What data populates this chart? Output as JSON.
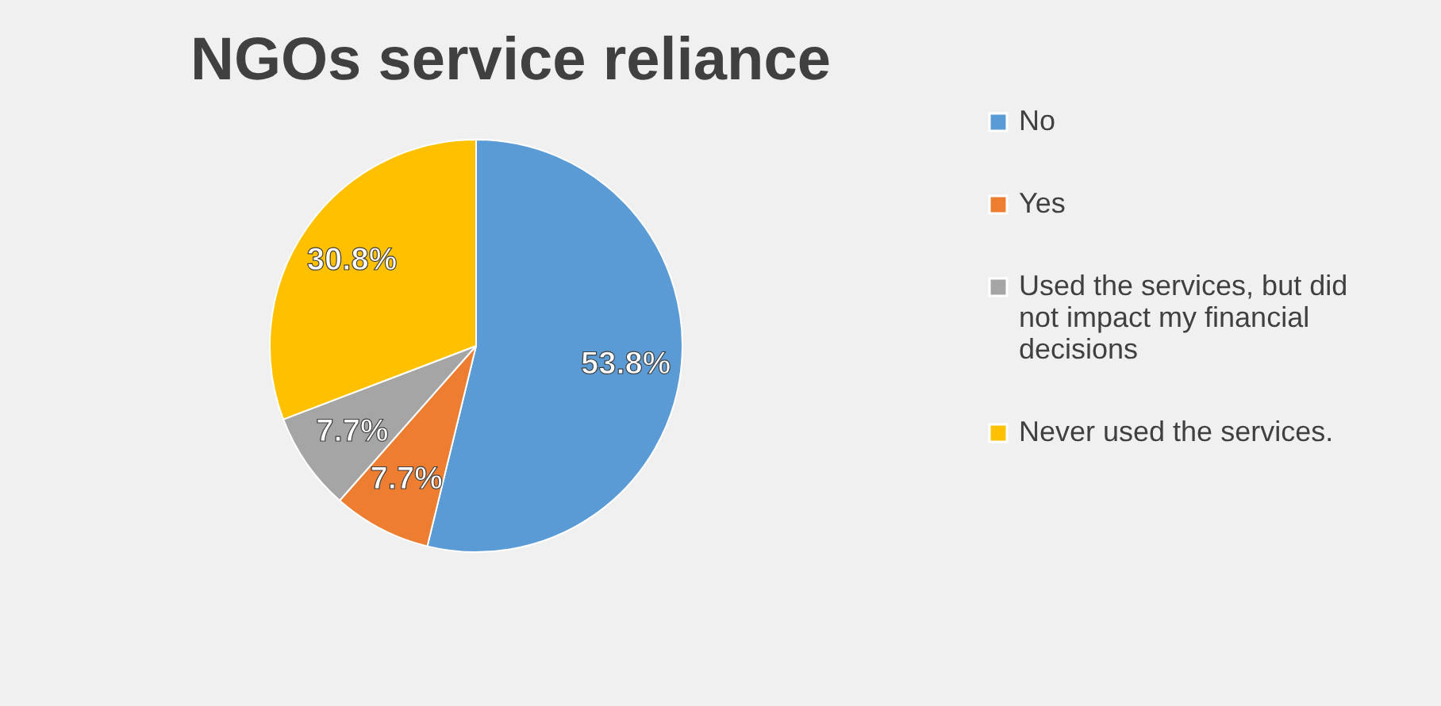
{
  "chart_data": {
    "type": "pie",
    "title": "NGOs service reliance",
    "categories": [
      "No",
      "Yes",
      "Used the services, but did not impact my financial decisions",
      "Never used the services."
    ],
    "values": [
      53.8,
      7.7,
      7.7,
      30.8
    ],
    "colors": [
      "#5b9bd5",
      "#ed7d31",
      "#a5a5a5",
      "#ffc000"
    ],
    "value_labels": [
      "53.8%",
      "7.7%",
      "7.7%",
      "30.8%"
    ],
    "legend": "right"
  }
}
